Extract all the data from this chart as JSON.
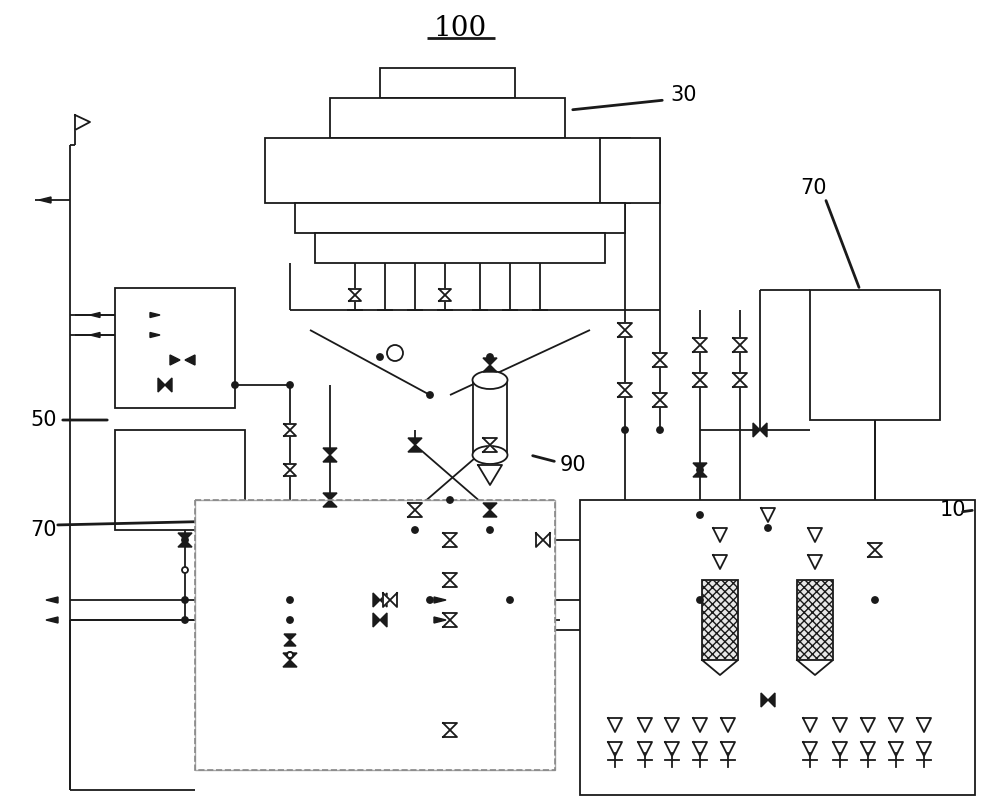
{
  "title": "100",
  "lc": "#1a1a1a",
  "bg": "#ffffff",
  "lw": 1.3,
  "lw_thick": 2.0
}
